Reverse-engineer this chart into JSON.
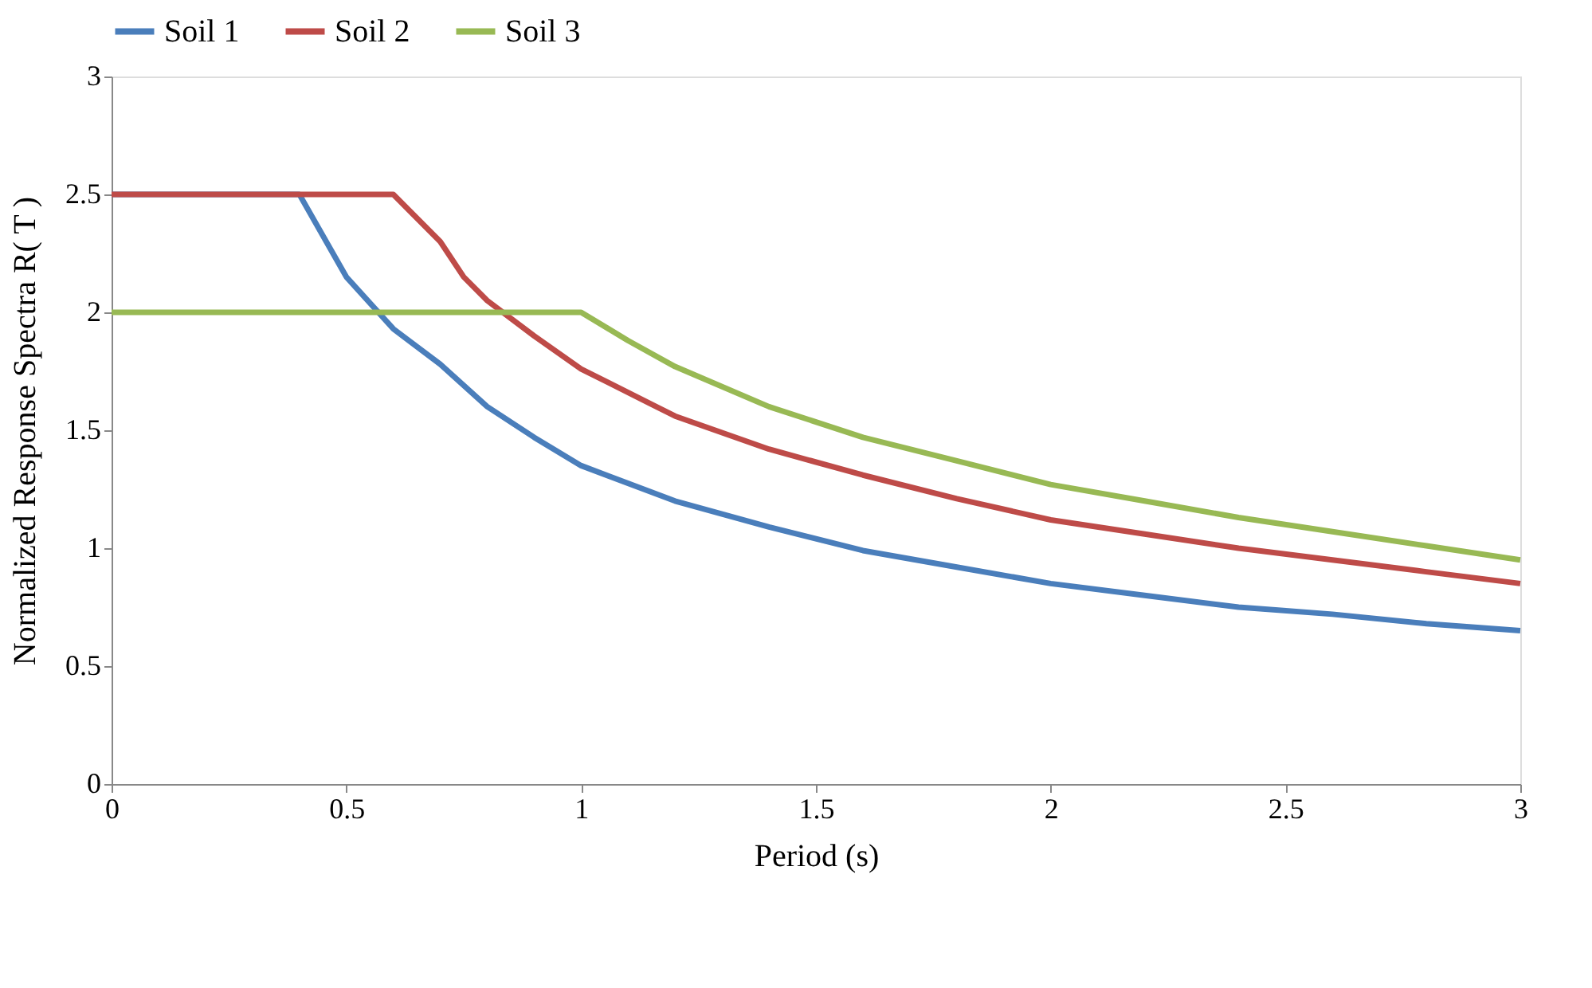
{
  "chart_data": {
    "type": "line",
    "xlabel": "Period (s)",
    "ylabel": "Normalized Response Spectra R( T )",
    "xlim": [
      0,
      3
    ],
    "ylim": [
      0,
      3
    ],
    "xticks": [
      0,
      0.5,
      1,
      1.5,
      2,
      2.5,
      3
    ],
    "yticks": [
      0,
      0.5,
      1,
      1.5,
      2,
      2.5,
      3
    ],
    "grid": false,
    "legend": "top",
    "marker": "none",
    "line_style": "solid",
    "series": [
      {
        "name": "Soil 1",
        "color": "#4a7ebb",
        "x": [
          0,
          0.4,
          0.5,
          0.6,
          0.7,
          0.8,
          0.9,
          1.0,
          1.2,
          1.4,
          1.6,
          1.8,
          2.0,
          2.2,
          2.4,
          2.6,
          2.8,
          3.0
        ],
        "values": [
          2.5,
          2.5,
          2.15,
          1.93,
          1.78,
          1.6,
          1.47,
          1.35,
          1.2,
          1.09,
          0.99,
          0.92,
          0.85,
          0.8,
          0.75,
          0.72,
          0.68,
          0.65
        ]
      },
      {
        "name": "Soil 2",
        "color": "#be4b48",
        "x": [
          0,
          0.6,
          0.7,
          0.75,
          0.8,
          0.9,
          1.0,
          1.2,
          1.4,
          1.6,
          1.8,
          2.0,
          2.2,
          2.4,
          2.6,
          2.8,
          3.0
        ],
        "values": [
          2.5,
          2.5,
          2.3,
          2.15,
          2.05,
          1.9,
          1.76,
          1.56,
          1.42,
          1.31,
          1.21,
          1.12,
          1.06,
          1.0,
          0.95,
          0.9,
          0.85
        ]
      },
      {
        "name": "Soil 3",
        "color": "#98b954",
        "x": [
          0,
          1.0,
          1.1,
          1.2,
          1.4,
          1.6,
          1.8,
          2.0,
          2.2,
          2.4,
          2.6,
          2.8,
          3.0
        ],
        "values": [
          2.0,
          2.0,
          1.88,
          1.77,
          1.6,
          1.47,
          1.37,
          1.27,
          1.2,
          1.13,
          1.07,
          1.01,
          0.95
        ]
      }
    ]
  }
}
